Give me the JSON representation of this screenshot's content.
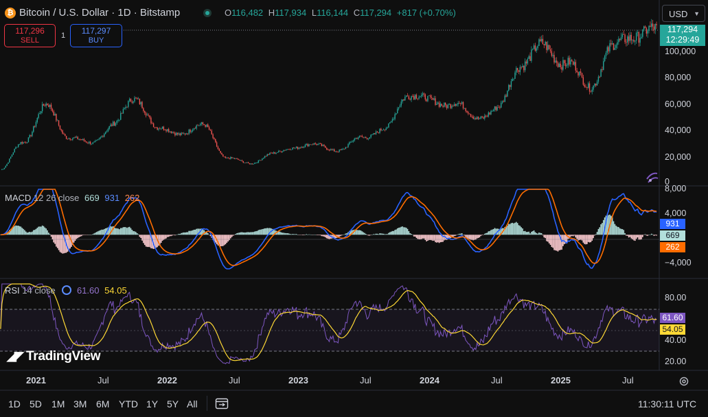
{
  "header": {
    "symbol_title": "Bitcoin / U.S. Dollar · 1D · Bitstamp",
    "btc_logo_glyph": "₿",
    "ohlc": {
      "o_label": "O",
      "o_value": "116,482",
      "h_label": "H",
      "h_value": "117,934",
      "l_label": "L",
      "l_value": "116,144",
      "c_label": "C",
      "c_value": "117,294",
      "change": "+817 (+0.70%)"
    },
    "currency": "USD"
  },
  "trade": {
    "sell_price": "117,296",
    "sell_label": "SELL",
    "spread": "1",
    "buy_price": "117,297",
    "buy_label": "BUY"
  },
  "price_axis": {
    "labels": [
      "100,000",
      "80,000",
      "60,000",
      "40,000",
      "20,000",
      "0"
    ],
    "last_price": "117,294",
    "countdown": "12:29:49"
  },
  "macd": {
    "title": "MACD",
    "params": "12 26 close",
    "macd_value": "669",
    "signal_value": "931",
    "hist_value": "262",
    "axis_labels": [
      "8,000",
      "4,000",
      "−4,000"
    ],
    "colors": {
      "macd": "#2962ff",
      "signal": "#ff6d00",
      "hist_pos": "#b2dfdb",
      "hist_neg": "#ffcdd2"
    }
  },
  "rsi": {
    "title": "RSI",
    "params": "14 close",
    "value": "61.60",
    "ma_value": "54.05",
    "axis_labels": [
      "80.00",
      "40.00",
      "20.00"
    ],
    "colors": {
      "rsi": "#7e57c2",
      "ma": "#fdd835"
    }
  },
  "time_axis": {
    "labels": [
      "2021",
      "Jul",
      "2022",
      "Jul",
      "2023",
      "Jul",
      "2024",
      "Jul",
      "2025",
      "Jul"
    ]
  },
  "toolbar": {
    "timeframes": [
      "1D",
      "5D",
      "1M",
      "3M",
      "6M",
      "YTD",
      "1Y",
      "5Y",
      "All"
    ],
    "clock": "11:30:11 UTC"
  },
  "branding": {
    "logo_text": "TradingView"
  },
  "colors": {
    "up": "#26a69a",
    "down": "#ef5350",
    "background": "#0f0f0f"
  },
  "chart_data": {
    "type": "line",
    "title": "Bitcoin / U.S. Dollar · 1D · Bitstamp",
    "x": [
      "2020-10",
      "2021-01",
      "2021-04",
      "2021-05",
      "2021-07",
      "2021-08",
      "2021-11",
      "2022-01",
      "2022-03",
      "2022-04",
      "2022-06",
      "2022-11",
      "2023-01",
      "2023-04",
      "2023-07",
      "2023-09",
      "2023-11",
      "2024-01",
      "2024-03",
      "2024-04",
      "2024-06",
      "2024-08",
      "2024-09",
      "2024-11",
      "2024-12",
      "2025-02",
      "2025-04",
      "2025-05",
      "2025-07",
      "2025-08"
    ],
    "series": [
      {
        "values": [
          11000,
          33000,
          60000,
          37000,
          31000,
          47000,
          67000,
          42000,
          40000,
          45000,
          20000,
          16000,
          23000,
          29000,
          30000,
          26000,
          37000,
          42000,
          71000,
          64000,
          63000,
          52000,
          58000,
          95000,
          106000,
          95000,
          76000,
          104000,
          118000,
          117294
        ]
      }
    ],
    "ylim": [
      0,
      124000
    ],
    "panes": {
      "macd": {
        "ylim": [
          -6000,
          8000
        ]
      },
      "rsi": {
        "ylim": [
          10,
          95
        ],
        "bands": [
          70,
          30
        ]
      }
    }
  }
}
